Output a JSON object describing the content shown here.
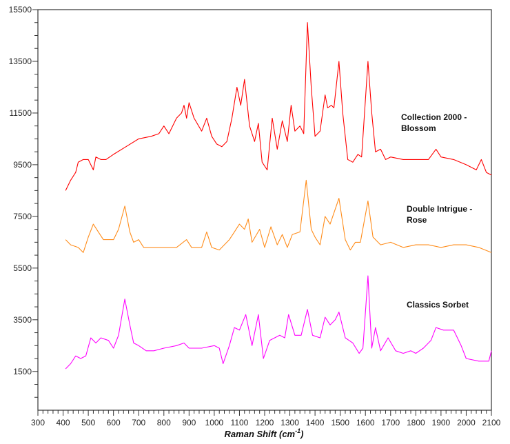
{
  "chart_data": {
    "type": "line",
    "title": "",
    "xlabel": "Raman Shift (cm",
    "xlabel_sup": "-1",
    "xlabel_end": ")",
    "ylabel": "",
    "xlim": [
      300,
      2100
    ],
    "ylim": [
      0,
      15500
    ],
    "xticks": [
      300,
      400,
      500,
      600,
      700,
      800,
      900,
      1000,
      1100,
      1200,
      1300,
      1400,
      1500,
      1600,
      1700,
      1800,
      1900,
      2000,
      2100
    ],
    "yticks": [
      1500,
      3500,
      5500,
      7500,
      9500,
      11500,
      13500,
      15500
    ],
    "grid": false,
    "series": [
      {
        "name": "Collection 2000 - Blossom",
        "label_lines": [
          "Collection 2000 -",
          "Blossom"
        ],
        "color": "#ff0000",
        "x": [
          410,
          430,
          450,
          460,
          480,
          500,
          520,
          530,
          550,
          570,
          600,
          650,
          700,
          750,
          780,
          800,
          820,
          850,
          870,
          880,
          890,
          900,
          920,
          950,
          970,
          990,
          1010,
          1030,
          1050,
          1070,
          1090,
          1105,
          1120,
          1140,
          1160,
          1175,
          1190,
          1210,
          1230,
          1250,
          1270,
          1290,
          1305,
          1320,
          1340,
          1355,
          1370,
          1385,
          1400,
          1420,
          1440,
          1450,
          1465,
          1475,
          1495,
          1510,
          1530,
          1550,
          1570,
          1585,
          1610,
          1625,
          1640,
          1660,
          1680,
          1700,
          1750,
          1800,
          1850,
          1880,
          1900,
          1950,
          2000,
          2040,
          2060,
          2080,
          2100
        ],
        "y": [
          8500,
          8900,
          9200,
          9600,
          9700,
          9700,
          9300,
          9800,
          9700,
          9700,
          9900,
          10200,
          10500,
          10600,
          10700,
          11000,
          10700,
          11300,
          11500,
          11800,
          11300,
          11900,
          11300,
          10800,
          11300,
          10600,
          10300,
          10200,
          10400,
          11300,
          12500,
          11800,
          12800,
          11000,
          10400,
          11100,
          9600,
          9300,
          11300,
          10100,
          11200,
          10400,
          11800,
          10800,
          11000,
          10700,
          15000,
          12500,
          10600,
          10800,
          12200,
          11700,
          11800,
          11700,
          13500,
          11500,
          9700,
          9600,
          9900,
          9800,
          13500,
          11500,
          10000,
          10100,
          9700,
          9800,
          9700,
          9700,
          9700,
          10100,
          9800,
          9700,
          9500,
          9300,
          9700,
          9200,
          9100
        ]
      },
      {
        "name": "Double Intrigue - Rose",
        "label_lines": [
          "Double Intrigue -",
          "Rose"
        ],
        "color": "#ff8c1a",
        "x": [
          410,
          430,
          460,
          480,
          500,
          520,
          540,
          560,
          600,
          620,
          645,
          665,
          680,
          700,
          720,
          750,
          800,
          850,
          890,
          910,
          950,
          970,
          990,
          1020,
          1060,
          1080,
          1100,
          1120,
          1135,
          1150,
          1180,
          1200,
          1225,
          1250,
          1270,
          1290,
          1310,
          1340,
          1365,
          1385,
          1400,
          1420,
          1440,
          1460,
          1495,
          1520,
          1540,
          1560,
          1580,
          1610,
          1630,
          1660,
          1700,
          1750,
          1800,
          1850,
          1900,
          1950,
          2000,
          2050,
          2100
        ],
        "y": [
          6600,
          6400,
          6300,
          6100,
          6700,
          7200,
          6900,
          6600,
          6600,
          7000,
          7900,
          6900,
          6500,
          6600,
          6300,
          6300,
          6300,
          6300,
          6600,
          6300,
          6300,
          6900,
          6300,
          6200,
          6600,
          6900,
          7200,
          7000,
          7400,
          6500,
          7000,
          6300,
          7100,
          6400,
          6800,
          6300,
          6800,
          6900,
          8900,
          7000,
          6700,
          6400,
          7500,
          7200,
          8200,
          6600,
          6200,
          6500,
          6500,
          8100,
          6700,
          6400,
          6500,
          6300,
          6400,
          6400,
          6300,
          6400,
          6400,
          6300,
          6100
        ]
      },
      {
        "name": "Classics Sorbet",
        "label_lines": [
          "Classics Sorbet"
        ],
        "color": "#ff00ff",
        "x": [
          410,
          430,
          450,
          470,
          490,
          510,
          530,
          550,
          580,
          600,
          620,
          645,
          665,
          680,
          700,
          730,
          760,
          800,
          850,
          880,
          900,
          950,
          1000,
          1020,
          1035,
          1060,
          1080,
          1100,
          1125,
          1150,
          1175,
          1195,
          1220,
          1260,
          1280,
          1295,
          1320,
          1345,
          1370,
          1390,
          1420,
          1440,
          1460,
          1480,
          1495,
          1520,
          1550,
          1575,
          1590,
          1610,
          1625,
          1640,
          1660,
          1690,
          1720,
          1750,
          1780,
          1800,
          1830,
          1860,
          1880,
          1910,
          1950,
          1980,
          2000,
          2050,
          2090,
          2100
        ],
        "y": [
          1600,
          1800,
          2100,
          2000,
          2100,
          2800,
          2600,
          2800,
          2700,
          2400,
          2900,
          4300,
          3300,
          2600,
          2500,
          2300,
          2300,
          2400,
          2500,
          2600,
          2400,
          2400,
          2500,
          2400,
          1800,
          2500,
          3200,
          3100,
          3700,
          2500,
          3700,
          2000,
          2700,
          2900,
          2800,
          3700,
          2900,
          2900,
          3900,
          2900,
          2800,
          3600,
          3300,
          3500,
          3800,
          2800,
          2600,
          2200,
          2400,
          5200,
          2400,
          3200,
          2300,
          2800,
          2300,
          2200,
          2300,
          2200,
          2400,
          2700,
          3200,
          3100,
          3100,
          2500,
          2000,
          1900,
          1900,
          2300
        ]
      }
    ]
  }
}
